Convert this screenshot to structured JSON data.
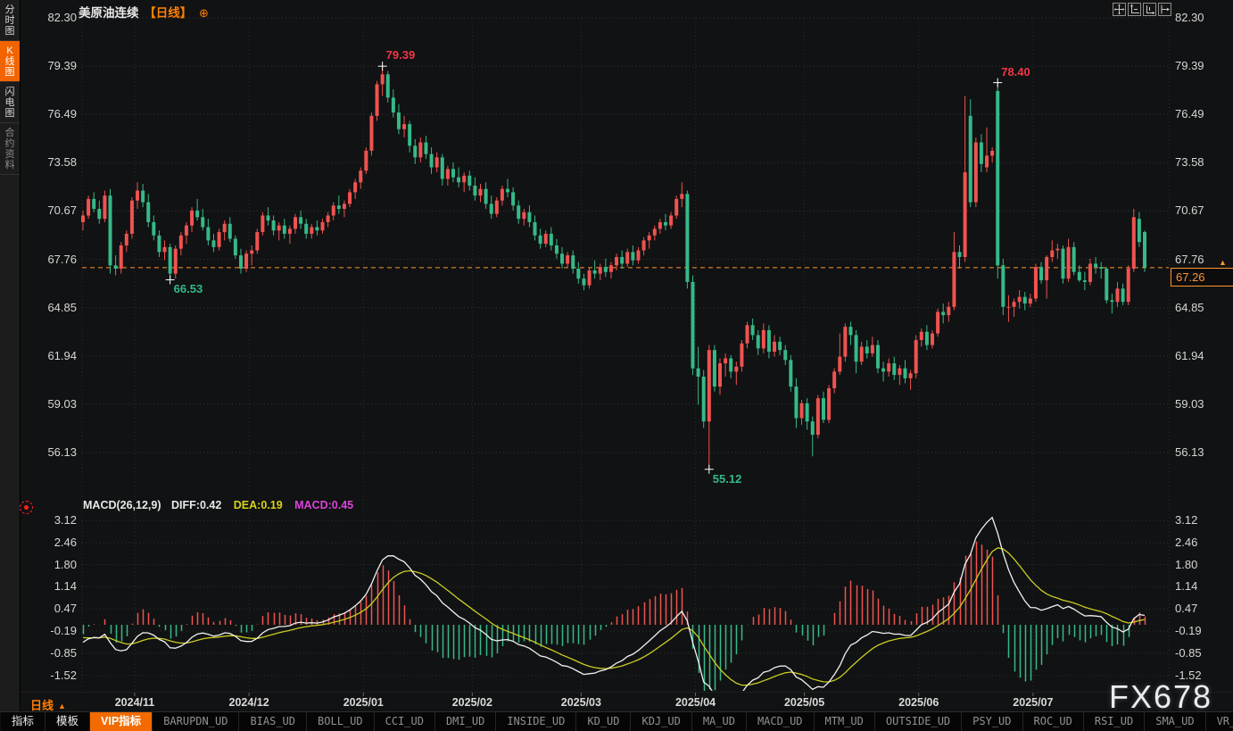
{
  "title": {
    "symbol": "美原油连续",
    "period_tag": "【日线】",
    "add_icon": "⊕"
  },
  "topbar": {
    "icons": [
      "pan-icon",
      "y-axis-scale-icon",
      "x-axis-scale-icon",
      "shift-right-icon"
    ]
  },
  "sidebar": {
    "tabs": [
      {
        "label": "分时图",
        "active": false,
        "muted": false
      },
      {
        "label": "K线图",
        "active": true,
        "muted": false
      },
      {
        "label": "闪电图",
        "active": false,
        "muted": false
      },
      {
        "label": "合约资料",
        "active": false,
        "muted": true
      }
    ]
  },
  "macd_header": {
    "name": "MACD(26,12,9)",
    "diff": "DIFF:0.42",
    "dea": "DEA:0.19",
    "macd": "MACD:0.45"
  },
  "current_price": {
    "value": "67.26",
    "arrow": "▲"
  },
  "xaxis": {
    "period_label": "日线",
    "period_arrow": "▲"
  },
  "watermark": "FX678",
  "toolbar": {
    "items": [
      {
        "label": "指标",
        "kind": "plain"
      },
      {
        "label": "模板",
        "kind": "plain"
      },
      {
        "label": "VIP指标",
        "kind": "active"
      },
      {
        "label": "BARUPDN_UD",
        "kind": "indicator"
      },
      {
        "label": "BIAS_UD",
        "kind": "indicator"
      },
      {
        "label": "BOLL_UD",
        "kind": "indicator"
      },
      {
        "label": "CCI_UD",
        "kind": "indicator"
      },
      {
        "label": "DMI_UD",
        "kind": "indicator"
      },
      {
        "label": "INSIDE_UD",
        "kind": "indicator"
      },
      {
        "label": "KD_UD",
        "kind": "indicator"
      },
      {
        "label": "KDJ_UD",
        "kind": "indicator"
      },
      {
        "label": "MA_UD",
        "kind": "indicator"
      },
      {
        "label": "MACD_UD",
        "kind": "indicator"
      },
      {
        "label": "MTM_UD",
        "kind": "indicator"
      },
      {
        "label": "OUTSIDE_UD",
        "kind": "indicator"
      },
      {
        "label": "PSY_UD",
        "kind": "indicator"
      },
      {
        "label": "ROC_UD",
        "kind": "indicator"
      },
      {
        "label": "RSI_UD",
        "kind": "indicator"
      },
      {
        "label": "SMA_UD",
        "kind": "indicator"
      },
      {
        "label": "VR_UD",
        "kind": "indicator"
      }
    ]
  },
  "chart_data": {
    "type": "candlestick",
    "symbol": "美原油连续",
    "period": "日线",
    "price_axis_labels": [
      "82.30",
      "79.39",
      "76.49",
      "73.58",
      "70.67",
      "67.76",
      "64.85",
      "61.94",
      "59.03",
      "56.13"
    ],
    "macd_axis_labels": [
      "3.12",
      "2.46",
      "1.80",
      "1.14",
      "0.47",
      "-0.19",
      "-0.85",
      "-1.52"
    ],
    "ylim": [
      56.13,
      82.3
    ],
    "current_price": 67.26,
    "x_ticks": [
      {
        "label": "2024/11",
        "index": 9.5
      },
      {
        "label": "2024/12",
        "index": 30.5
      },
      {
        "label": "2025/01",
        "index": 51.5
      },
      {
        "label": "2025/02",
        "index": 71.5
      },
      {
        "label": "2025/03",
        "index": 91.5
      },
      {
        "label": "2025/04",
        "index": 112.5
      },
      {
        "label": "2025/05",
        "index": 132.5
      },
      {
        "label": "2025/06",
        "index": 153.5
      },
      {
        "label": "2025/07",
        "index": 174.5
      }
    ],
    "annotations": [
      {
        "text": "79.39",
        "index": 55,
        "price": 79.39,
        "dir": "above",
        "color": "#f23645"
      },
      {
        "text": "66.53",
        "index": 16,
        "price": 66.53,
        "dir": "below",
        "color": "#33b98a"
      },
      {
        "text": "78.40",
        "index": 168,
        "price": 78.4,
        "dir": "above",
        "color": "#f23645"
      },
      {
        "text": "55.12",
        "index": 115,
        "price": 55.12,
        "dir": "below",
        "color": "#33b98a"
      }
    ],
    "macd_params": [
      26,
      12,
      9
    ],
    "macd_values": {
      "diff": 0.42,
      "dea": 0.19,
      "macd": 0.45
    },
    "colors": {
      "up": "#ef5350",
      "down": "#36b988",
      "diff_line": "#f2f2f2",
      "dea_line": "#c9cd22",
      "dea_text": "#d6d41c",
      "macd_text": "#d944d9",
      "price_line": "#ff9532",
      "grid": "#2e2e2e",
      "axis_text": "#d6d6d6"
    },
    "candles": [
      [
        70.0,
        70.7,
        69.5,
        70.4
      ],
      [
        70.4,
        71.6,
        70.2,
        71.4
      ],
      [
        71.4,
        71.8,
        70.6,
        70.8
      ],
      [
        70.8,
        71.3,
        69.9,
        70.2
      ],
      [
        70.2,
        71.9,
        70.0,
        71.6
      ],
      [
        71.6,
        72.0,
        66.9,
        67.4
      ],
      [
        67.4,
        68.0,
        66.8,
        67.2
      ],
      [
        67.2,
        68.8,
        66.9,
        68.6
      ],
      [
        68.6,
        69.5,
        68.2,
        69.3
      ],
      [
        69.3,
        71.5,
        69.0,
        71.3
      ],
      [
        71.3,
        72.4,
        70.8,
        71.9
      ],
      [
        71.9,
        72.3,
        70.9,
        71.2
      ],
      [
        71.2,
        71.7,
        69.7,
        70.0
      ],
      [
        70.0,
        70.4,
        68.9,
        69.2
      ],
      [
        69.2,
        69.5,
        67.9,
        68.2
      ],
      [
        68.2,
        68.9,
        67.7,
        68.5
      ],
      [
        68.5,
        68.7,
        66.53,
        66.9
      ],
      [
        66.9,
        68.6,
        66.6,
        68.4
      ],
      [
        68.4,
        69.4,
        68.0,
        69.2
      ],
      [
        69.2,
        70.0,
        68.7,
        69.8
      ],
      [
        69.8,
        70.9,
        69.4,
        70.7
      ],
      [
        70.7,
        71.4,
        70.1,
        70.3
      ],
      [
        70.3,
        70.8,
        69.5,
        69.7
      ],
      [
        69.7,
        70.2,
        68.6,
        68.9
      ],
      [
        68.9,
        69.3,
        68.2,
        68.5
      ],
      [
        68.5,
        69.6,
        68.3,
        69.4
      ],
      [
        69.4,
        70.1,
        68.9,
        69.9
      ],
      [
        69.9,
        70.3,
        68.8,
        69.0
      ],
      [
        69.0,
        69.2,
        67.8,
        68.0
      ],
      [
        68.0,
        68.4,
        66.9,
        67.2
      ],
      [
        67.2,
        68.3,
        67.0,
        68.1
      ],
      [
        68.1,
        68.6,
        67.4,
        68.3
      ],
      [
        68.3,
        69.6,
        68.1,
        69.4
      ],
      [
        69.4,
        70.6,
        69.2,
        70.4
      ],
      [
        70.4,
        70.9,
        69.8,
        70.1
      ],
      [
        70.1,
        70.4,
        69.2,
        69.5
      ],
      [
        69.5,
        70.0,
        68.9,
        69.8
      ],
      [
        69.8,
        70.2,
        69.0,
        69.3
      ],
      [
        69.3,
        69.8,
        68.7,
        69.6
      ],
      [
        69.6,
        70.5,
        69.3,
        70.3
      ],
      [
        70.3,
        70.7,
        69.6,
        69.9
      ],
      [
        69.9,
        70.2,
        69.0,
        69.3
      ],
      [
        69.3,
        69.9,
        69.0,
        69.7
      ],
      [
        69.7,
        70.1,
        69.2,
        69.5
      ],
      [
        69.5,
        70.2,
        69.3,
        70.0
      ],
      [
        70.0,
        70.6,
        69.7,
        70.4
      ],
      [
        70.4,
        71.2,
        70.1,
        71.0
      ],
      [
        71.0,
        71.6,
        70.5,
        70.8
      ],
      [
        70.8,
        71.3,
        70.3,
        71.1
      ],
      [
        71.1,
        72.0,
        70.9,
        71.8
      ],
      [
        71.8,
        72.6,
        71.4,
        72.4
      ],
      [
        72.4,
        73.3,
        72.0,
        73.1
      ],
      [
        73.1,
        74.5,
        72.9,
        74.3
      ],
      [
        74.3,
        76.6,
        74.0,
        76.4
      ],
      [
        76.4,
        78.5,
        76.1,
        78.3
      ],
      [
        78.3,
        79.39,
        77.6,
        78.9
      ],
      [
        78.9,
        79.1,
        77.2,
        77.5
      ],
      [
        77.5,
        78.0,
        76.3,
        76.6
      ],
      [
        76.6,
        77.1,
        75.3,
        75.6
      ],
      [
        75.6,
        76.4,
        75.1,
        75.9
      ],
      [
        75.9,
        76.1,
        74.2,
        74.6
      ],
      [
        74.6,
        75.0,
        73.5,
        73.9
      ],
      [
        73.9,
        75.1,
        73.6,
        74.8
      ],
      [
        74.8,
        75.2,
        73.8,
        74.1
      ],
      [
        74.1,
        74.5,
        72.9,
        73.3
      ],
      [
        73.3,
        74.2,
        73.0,
        73.9
      ],
      [
        73.9,
        74.1,
        72.2,
        72.6
      ],
      [
        72.6,
        73.4,
        72.2,
        73.2
      ],
      [
        73.2,
        73.6,
        72.4,
        72.7
      ],
      [
        72.7,
        73.3,
        72.1,
        72.4
      ],
      [
        72.4,
        73.0,
        71.8,
        72.8
      ],
      [
        72.8,
        73.1,
        71.9,
        72.2
      ],
      [
        72.2,
        72.7,
        71.3,
        71.6
      ],
      [
        71.6,
        72.3,
        71.2,
        72.0
      ],
      [
        72.0,
        72.4,
        70.8,
        71.1
      ],
      [
        71.1,
        71.6,
        70.2,
        70.5
      ],
      [
        70.5,
        71.5,
        70.3,
        71.3
      ],
      [
        71.3,
        72.2,
        71.0,
        72.0
      ],
      [
        72.0,
        72.6,
        71.5,
        71.8
      ],
      [
        71.8,
        72.1,
        70.7,
        71.0
      ],
      [
        71.0,
        71.3,
        69.9,
        70.2
      ],
      [
        70.2,
        70.8,
        69.8,
        70.6
      ],
      [
        70.6,
        71.0,
        69.7,
        70.0
      ],
      [
        70.0,
        70.4,
        68.9,
        69.2
      ],
      [
        69.2,
        69.6,
        68.4,
        68.7
      ],
      [
        68.7,
        69.5,
        68.5,
        69.3
      ],
      [
        69.3,
        69.7,
        68.3,
        68.6
      ],
      [
        68.6,
        69.0,
        67.8,
        68.1
      ],
      [
        68.1,
        68.5,
        67.2,
        67.5
      ],
      [
        67.5,
        68.2,
        67.3,
        68.0
      ],
      [
        68.0,
        68.3,
        66.9,
        67.2
      ],
      [
        67.2,
        67.6,
        66.3,
        66.6
      ],
      [
        66.6,
        66.9,
        65.9,
        66.2
      ],
      [
        66.2,
        67.3,
        66.0,
        67.1
      ],
      [
        67.1,
        67.7,
        66.6,
        66.9
      ],
      [
        66.9,
        67.5,
        66.5,
        67.3
      ],
      [
        67.3,
        67.8,
        66.7,
        67.0
      ],
      [
        67.0,
        67.6,
        66.6,
        67.4
      ],
      [
        67.4,
        68.1,
        67.1,
        67.9
      ],
      [
        67.9,
        68.3,
        67.2,
        67.5
      ],
      [
        67.5,
        68.4,
        67.3,
        68.2
      ],
      [
        68.2,
        68.6,
        67.4,
        67.7
      ],
      [
        67.7,
        68.5,
        67.5,
        68.3
      ],
      [
        68.3,
        69.1,
        68.0,
        68.9
      ],
      [
        68.9,
        69.4,
        68.4,
        69.2
      ],
      [
        69.2,
        69.8,
        68.9,
        69.6
      ],
      [
        69.6,
        70.2,
        69.3,
        70.0
      ],
      [
        70.0,
        70.5,
        69.5,
        69.8
      ],
      [
        69.8,
        70.6,
        69.6,
        70.4
      ],
      [
        70.4,
        71.6,
        70.2,
        71.4
      ],
      [
        71.4,
        72.4,
        70.9,
        71.7
      ],
      [
        71.7,
        71.9,
        66.0,
        66.4
      ],
      [
        66.4,
        66.8,
        60.8,
        61.2
      ],
      [
        61.2,
        62.5,
        59.0,
        60.7
      ],
      [
        60.7,
        61.1,
        57.6,
        58.0
      ],
      [
        58.0,
        62.6,
        55.12,
        62.3
      ],
      [
        62.3,
        62.6,
        59.8,
        60.1
      ],
      [
        60.1,
        61.8,
        59.6,
        61.5
      ],
      [
        61.5,
        62.1,
        60.7,
        61.8
      ],
      [
        61.8,
        62.0,
        60.6,
        61.0
      ],
      [
        61.0,
        61.6,
        60.2,
        61.3
      ],
      [
        61.3,
        62.9,
        61.0,
        62.7
      ],
      [
        62.7,
        64.0,
        62.4,
        63.8
      ],
      [
        63.8,
        64.2,
        62.9,
        63.2
      ],
      [
        63.2,
        63.5,
        62.0,
        62.4
      ],
      [
        62.4,
        63.9,
        62.1,
        63.5
      ],
      [
        63.5,
        63.8,
        61.8,
        62.2
      ],
      [
        62.2,
        63.2,
        61.9,
        62.8
      ],
      [
        62.8,
        63.1,
        62.0,
        62.3
      ],
      [
        62.3,
        62.6,
        61.4,
        61.7
      ],
      [
        61.7,
        62.0,
        59.8,
        60.1
      ],
      [
        60.1,
        60.6,
        57.6,
        58.2
      ],
      [
        58.2,
        59.3,
        57.8,
        59.1
      ],
      [
        59.1,
        59.4,
        57.5,
        58.0
      ],
      [
        58.0,
        58.3,
        55.9,
        57.2
      ],
      [
        57.2,
        59.6,
        57.0,
        59.4
      ],
      [
        59.4,
        59.8,
        57.9,
        58.1
      ],
      [
        58.1,
        60.2,
        57.9,
        60.0
      ],
      [
        60.0,
        61.2,
        59.7,
        61.0
      ],
      [
        61.0,
        63.3,
        60.8,
        61.9
      ],
      [
        61.9,
        63.9,
        61.6,
        63.7
      ],
      [
        63.7,
        64.0,
        62.6,
        63.2
      ],
      [
        63.2,
        63.5,
        60.9,
        61.6
      ],
      [
        61.6,
        62.8,
        61.4,
        62.5
      ],
      [
        62.5,
        62.9,
        61.8,
        62.1
      ],
      [
        62.1,
        63.1,
        61.9,
        62.6
      ],
      [
        62.6,
        62.9,
        60.9,
        61.2
      ],
      [
        61.2,
        61.6,
        60.4,
        61.0
      ],
      [
        61.0,
        61.8,
        60.7,
        61.5
      ],
      [
        61.5,
        61.9,
        60.5,
        60.8
      ],
      [
        60.8,
        61.4,
        60.2,
        61.2
      ],
      [
        61.2,
        61.7,
        60.3,
        60.6
      ],
      [
        60.6,
        61.1,
        59.9,
        60.9
      ],
      [
        60.9,
        63.2,
        60.6,
        62.9
      ],
      [
        62.9,
        63.6,
        62.5,
        63.4
      ],
      [
        63.4,
        63.8,
        62.3,
        62.6
      ],
      [
        62.6,
        63.5,
        62.4,
        63.3
      ],
      [
        63.3,
        64.8,
        63.1,
        64.6
      ],
      [
        64.6,
        65.1,
        63.9,
        64.4
      ],
      [
        64.4,
        65.2,
        64.0,
        64.9
      ],
      [
        64.9,
        69.4,
        64.7,
        68.2
      ],
      [
        68.2,
        68.6,
        67.2,
        67.9
      ],
      [
        67.9,
        77.6,
        67.6,
        73.0
      ],
      [
        76.4,
        77.4,
        70.9,
        71.2
      ],
      [
        71.2,
        75.1,
        70.9,
        74.8
      ],
      [
        74.8,
        75.3,
        73.0,
        73.5
      ],
      [
        73.3,
        75.7,
        73.0,
        74.0
      ],
      [
        74.0,
        74.5,
        73.6,
        74.3
      ],
      [
        77.9,
        78.4,
        66.6,
        67.4
      ],
      [
        67.4,
        67.8,
        64.4,
        64.9
      ],
      [
        64.9,
        65.6,
        64.0,
        64.9
      ],
      [
        64.9,
        65.4,
        64.3,
        65.2
      ],
      [
        65.2,
        65.9,
        64.8,
        65.5
      ],
      [
        65.5,
        65.8,
        64.7,
        65.1
      ],
      [
        65.1,
        65.7,
        64.9,
        65.4
      ],
      [
        65.4,
        67.5,
        65.2,
        67.3
      ],
      [
        67.3,
        67.6,
        66.3,
        66.5
      ],
      [
        66.5,
        68.0,
        65.4,
        67.9
      ],
      [
        67.9,
        68.9,
        67.6,
        68.3
      ],
      [
        68.3,
        68.7,
        67.8,
        68.4
      ],
      [
        68.4,
        68.6,
        66.3,
        66.6
      ],
      [
        66.6,
        69.0,
        66.4,
        68.5
      ],
      [
        68.5,
        68.8,
        66.8,
        67.0
      ],
      [
        67.0,
        67.4,
        66.4,
        66.5
      ],
      [
        66.5,
        67.0,
        65.9,
        66.4
      ],
      [
        66.4,
        67.8,
        66.2,
        67.5
      ],
      [
        67.5,
        67.9,
        66.9,
        67.3
      ],
      [
        67.3,
        67.6,
        66.6,
        67.2
      ],
      [
        67.2,
        67.3,
        65.1,
        65.3
      ],
      [
        65.3,
        65.7,
        64.5,
        65.2
      ],
      [
        65.2,
        66.4,
        64.9,
        66.0
      ],
      [
        66.0,
        66.3,
        65.0,
        65.2
      ],
      [
        65.2,
        67.4,
        65.0,
        67.2
      ],
      [
        67.2,
        70.8,
        67.0,
        70.3
      ],
      [
        70.2,
        70.6,
        68.5,
        68.8
      ],
      [
        69.4,
        69.5,
        67.0,
        67.26
      ]
    ]
  }
}
